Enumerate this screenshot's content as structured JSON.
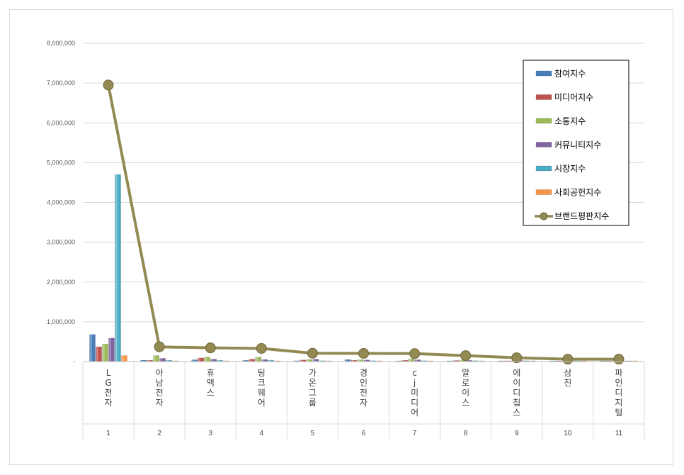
{
  "chart_data": {
    "type": "bar",
    "categories": [
      "LG전자",
      "아남전자",
      "휴맥스",
      "팅크웨어",
      "가온그룹",
      "경인전자",
      "cj미디어",
      "알로이스",
      "에이디칩스",
      "삼진",
      "파인디지털"
    ],
    "index_labels": [
      "1",
      "2",
      "3",
      "4",
      "5",
      "6",
      "7",
      "8",
      "9",
      "10",
      "11"
    ],
    "ylim": [
      0,
      8000000
    ],
    "yticks": [
      "-",
      "1,000,000",
      "2,000,000",
      "3,000,000",
      "4,000,000",
      "5,000,000",
      "6,000,000",
      "7,000,000",
      "8,000,000"
    ],
    "grid": true,
    "legend_position": "top-right",
    "series": [
      {
        "name": "참여지수",
        "kind": "bar",
        "color": "#4a7ebb",
        "values": [
          680000,
          35000,
          45000,
          30000,
          20000,
          50000,
          15000,
          15000,
          10000,
          15000,
          10000
        ]
      },
      {
        "name": "미디어지수",
        "kind": "bar",
        "color": "#c0504d",
        "values": [
          370000,
          30000,
          90000,
          60000,
          40000,
          30000,
          30000,
          25000,
          15000,
          10000,
          10000
        ]
      },
      {
        "name": "소통지수",
        "kind": "bar",
        "color": "#9bbb59",
        "values": [
          440000,
          150000,
          110000,
          110000,
          50000,
          45000,
          70000,
          40000,
          20000,
          15000,
          15000
        ]
      },
      {
        "name": "커뮤니티지수",
        "kind": "bar",
        "color": "#8064a2",
        "values": [
          590000,
          80000,
          60000,
          50000,
          60000,
          40000,
          45000,
          30000,
          25000,
          15000,
          15000
        ]
      },
      {
        "name": "시장지수",
        "kind": "bar",
        "color": "#4bacc6",
        "values": [
          4700000,
          30000,
          30000,
          30000,
          20000,
          20000,
          20000,
          20000,
          20000,
          10000,
          10000
        ]
      },
      {
        "name": "사회공헌지수",
        "kind": "bar",
        "color": "#f79646",
        "values": [
          150000,
          10000,
          10000,
          10000,
          5000,
          5000,
          5000,
          5000,
          5000,
          5000,
          5000
        ]
      },
      {
        "name": "브랜드평판지수",
        "kind": "line",
        "color": "#938953",
        "values": [
          6950000,
          370000,
          345000,
          330000,
          210000,
          205000,
          200000,
          150000,
          95000,
          60000,
          60000
        ]
      }
    ]
  }
}
